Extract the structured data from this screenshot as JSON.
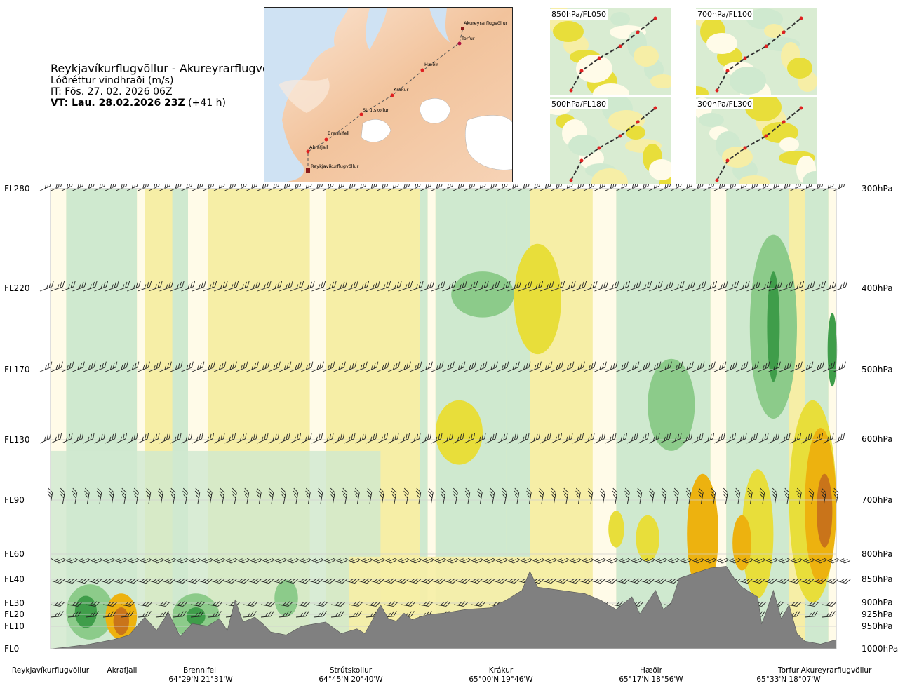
{
  "header": {
    "route": "Reykjavíkurflugvöllur - Akureyrarflugvöllur",
    "variable": "Lóðréttur vindhraði (m/s)",
    "issue_time": "IT: Fös. 27. 02. 2026 06Z",
    "valid_time_bold": "VT: Lau. 28.02.2026 23Z",
    "valid_time_offset": "(+41 h)"
  },
  "route_map": {
    "waypoints": [
      "Reykjavíkurflugvöllur",
      "Akrafjall",
      "Brennifell",
      "Strútskollur",
      "Krákur",
      "Hæðir",
      "Torfur",
      "Akureyrarflugvöllur"
    ]
  },
  "mini_maps": [
    {
      "label": "850hPa/FL050"
    },
    {
      "label": "700hPa/FL100"
    },
    {
      "label": "500hPa/FL180"
    },
    {
      "label": "300hPa/FL300"
    }
  ],
  "chart_data": {
    "type": "heatmap",
    "title": "Reykjavíkurflugvöllur - Akureyrarflugvöllur",
    "variable": "Lóðréttur vindhraði (m/s)",
    "y_left_ticks": [
      "FL280",
      "FL220",
      "FL170",
      "FL130",
      "FL90",
      "FL60",
      "FL40",
      "FL30",
      "FL20",
      "FL10",
      "FL0"
    ],
    "y_right_ticks": [
      "300hPa",
      "400hPa",
      "500hPa",
      "600hPa",
      "700hPa",
      "800hPa",
      "850hPa",
      "900hPa",
      "925hPa",
      "950hPa",
      "1000hPa"
    ],
    "x_locations": [
      {
        "name": "Reykjavíkurflugvöllur",
        "coord": ""
      },
      {
        "name": "Akrafjall",
        "coord": ""
      },
      {
        "name": "Brennifell",
        "coord": "64°29'N 21°31'W"
      },
      {
        "name": "Strútskollur",
        "coord": "64°45'N 20°40'W"
      },
      {
        "name": "Krákur",
        "coord": "65°00'N 19°46'W"
      },
      {
        "name": "Hæðir",
        "coord": "65°17'N 18°56'W"
      },
      {
        "name": "Torfur",
        "coord": "65°33'N 18°07'W"
      },
      {
        "name": "Akureyrarflugvöllur",
        "coord": ""
      }
    ],
    "colors": {
      "strong_down": "#3f9d4a",
      "mod_down": "#8ccb8a",
      "weak_down": "#cfe9cf",
      "neutral": "#fffbe8",
      "weak_up": "#f6eea6",
      "mod_up": "#e8de3a",
      "strong_up": "#edb20f",
      "very_strong_up": "#c9741a",
      "terrain": "#808080"
    },
    "terrain_profile": [
      [
        0,
        0.0
      ],
      [
        0.02,
        0.1
      ],
      [
        0.05,
        0.3
      ],
      [
        0.08,
        0.6
      ],
      [
        0.1,
        0.9
      ],
      [
        0.12,
        2.6
      ],
      [
        0.135,
        1.2
      ],
      [
        0.15,
        3.2
      ],
      [
        0.165,
        0.8
      ],
      [
        0.18,
        1.8
      ],
      [
        0.2,
        1.5
      ],
      [
        0.215,
        2.4
      ],
      [
        0.225,
        1.2
      ],
      [
        0.235,
        4.6
      ],
      [
        0.245,
        2.0
      ],
      [
        0.26,
        2.6
      ],
      [
        0.27,
        1.8
      ],
      [
        0.28,
        1.1
      ],
      [
        0.3,
        0.9
      ],
      [
        0.32,
        1.5
      ],
      [
        0.35,
        2.0
      ],
      [
        0.37,
        1.0
      ],
      [
        0.39,
        1.3
      ],
      [
        0.4,
        1.0
      ],
      [
        0.41,
        2.3
      ],
      [
        0.42,
        4.2
      ],
      [
        0.43,
        2.4
      ],
      [
        0.44,
        2.1
      ],
      [
        0.45,
        3.1
      ],
      [
        0.46,
        2.3
      ],
      [
        0.48,
        2.9
      ],
      [
        0.5,
        3.1
      ],
      [
        0.53,
        3.6
      ],
      [
        0.56,
        3.8
      ],
      [
        0.58,
        4.6
      ],
      [
        0.6,
        5.2
      ],
      [
        0.61,
        6.8
      ],
      [
        0.62,
        5.4
      ],
      [
        0.65,
        5.2
      ],
      [
        0.68,
        5.0
      ],
      [
        0.7,
        4.6
      ],
      [
        0.72,
        3.6
      ],
      [
        0.74,
        4.8
      ],
      [
        0.75,
        3.0
      ],
      [
        0.77,
        5.2
      ],
      [
        0.78,
        3.6
      ],
      [
        0.79,
        4.4
      ],
      [
        0.8,
        6.0
      ],
      [
        0.82,
        6.6
      ],
      [
        0.84,
        7.2
      ],
      [
        0.86,
        7.4
      ],
      [
        0.87,
        6.0
      ],
      [
        0.88,
        5.4
      ],
      [
        0.9,
        4.8
      ],
      [
        0.905,
        1.8
      ],
      [
        0.91,
        3.0
      ],
      [
        0.92,
        5.2
      ],
      [
        0.93,
        2.4
      ],
      [
        0.94,
        4.2
      ],
      [
        0.95,
        1.0
      ],
      [
        0.96,
        0.5
      ],
      [
        0.98,
        0.3
      ],
      [
        1.0,
        0.6
      ]
    ]
  }
}
